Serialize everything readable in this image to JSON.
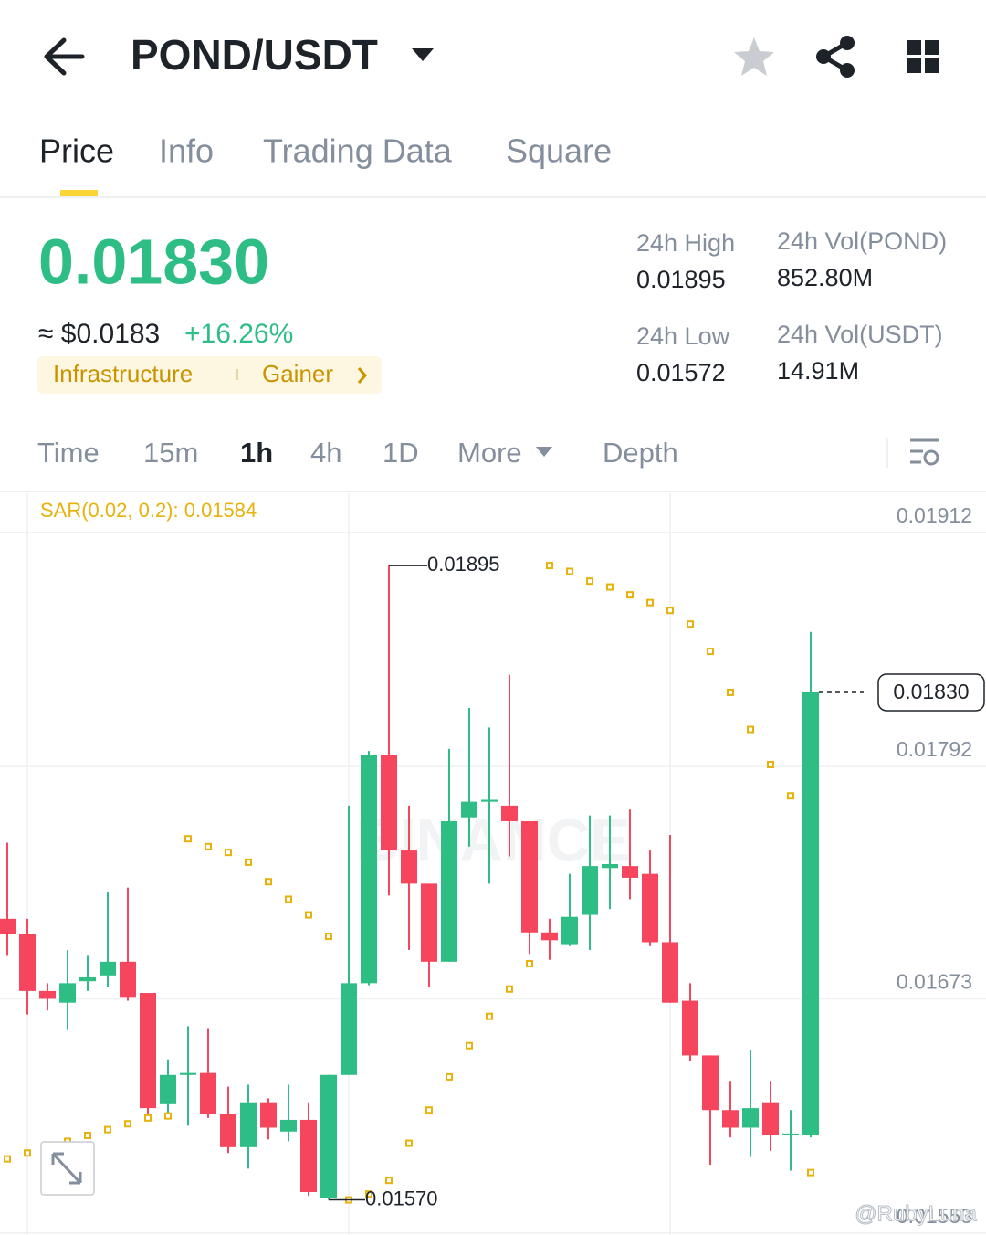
{
  "header": {
    "title": "POND/USDT"
  },
  "tabs": [
    "Price",
    "Info",
    "Trading Data",
    "Square"
  ],
  "ticker": {
    "price": "0.01830",
    "fiat": "≈ $0.0183",
    "change": "+16.26%",
    "tags": [
      "Infrastructure",
      "Gainer"
    ],
    "stats": [
      {
        "label": "24h High",
        "value": "0.01895"
      },
      {
        "label": "24h Vol(POND)",
        "value": "852.80M"
      },
      {
        "label": "24h Low",
        "value": "0.01572"
      },
      {
        "label": "24h Vol(USDT)",
        "value": "14.91M"
      }
    ]
  },
  "intervals": [
    "Time",
    "15m",
    "1h",
    "4h",
    "1D",
    "More",
    "Depth"
  ],
  "chart_data": {
    "type": "candlestick",
    "indicator_label": "SAR(0.02, 0.2): 0.01584",
    "watermark": "BINANCE",
    "up_color": "#2ebd85",
    "down_color": "#f6465d",
    "sar_color": "#e7b20c",
    "open": [
      0.01714,
      0.01706,
      0.01677,
      0.01671,
      0.01682,
      0.01685,
      0.01692,
      0.01676,
      0.01619,
      0.01634,
      0.01635,
      0.01614,
      0.01597,
      0.0162,
      0.01605,
      0.01611,
      0.01571,
      0.01634,
      0.01681,
      0.01798,
      0.01749,
      0.01732,
      0.01692,
      0.01766,
      0.01774,
      0.01772,
      0.01764,
      0.01707,
      0.01701,
      0.01716,
      0.0174,
      0.01741,
      0.01737,
      0.01702,
      0.01672,
      0.01644,
      0.01616,
      0.01607,
      0.0162,
      0.01603,
      0.01603
    ],
    "high": [
      0.01753,
      0.01714,
      0.01681,
      0.01698,
      0.01695,
      0.01728,
      0.0173,
      0.01676,
      0.01642,
      0.01659,
      0.01658,
      0.01628,
      0.01629,
      0.01622,
      0.01629,
      0.0162,
      0.01634,
      0.01772,
      0.018,
      0.01895,
      0.01772,
      0.01732,
      0.01801,
      0.01822,
      0.01812,
      0.01839,
      0.01764,
      0.01714,
      0.01737,
      0.01767,
      0.01767,
      0.0177,
      0.01749,
      0.01757,
      0.01681,
      0.01644,
      0.01631,
      0.01647,
      0.01631,
      0.01616,
      0.01861
    ],
    "low": [
      0.01695,
      0.01665,
      0.01667,
      0.01657,
      0.01677,
      0.01679,
      0.01672,
      0.01614,
      0.01614,
      0.01608,
      0.01612,
      0.01594,
      0.01586,
      0.01601,
      0.016,
      0.01572,
      0.0157,
      0.01634,
      0.0168,
      0.01726,
      0.01698,
      0.01679,
      0.01692,
      0.01751,
      0.01732,
      0.01746,
      0.01696,
      0.01693,
      0.017,
      0.01698,
      0.01719,
      0.01724,
      0.017,
      0.01671,
      0.01641,
      0.01588,
      0.01602,
      0.01592,
      0.01595,
      0.01585,
      0.01602
    ],
    "close": [
      0.01706,
      0.01677,
      0.01673,
      0.01681,
      0.01684,
      0.01692,
      0.01674,
      0.01617,
      0.01634,
      0.01635,
      0.01614,
      0.01597,
      0.0162,
      0.01607,
      0.01611,
      0.01574,
      0.01634,
      0.01681,
      0.01798,
      0.01749,
      0.01732,
      0.01692,
      0.01764,
      0.01774,
      0.01775,
      0.01764,
      0.01707,
      0.01703,
      0.01715,
      0.01741,
      0.01742,
      0.01735,
      0.01702,
      0.01671,
      0.01644,
      0.01616,
      0.01607,
      0.01617,
      0.01603,
      0.01604,
      0.0183
    ],
    "sar": [
      0.01591,
      0.01594,
      0.01597,
      0.016,
      0.01603,
      0.01606,
      0.01609,
      0.01612,
      0.01613,
      0.01755,
      0.01751,
      0.01748,
      0.01743,
      0.01733,
      0.01724,
      0.01716,
      0.01705,
      0.0157,
      0.01573,
      0.0158,
      0.01599,
      0.01616,
      0.01633,
      0.01649,
      0.01664,
      0.01678,
      0.01691,
      0.01895,
      0.01892,
      0.01887,
      0.01884,
      0.0188,
      0.01876,
      0.01872,
      0.01865,
      0.01851,
      0.0183,
      0.01811,
      0.01793,
      0.01777,
      0.01584
    ],
    "max_label": 0.01895,
    "min_label": {
      "value": 0.0157,
      "label": "0.01570"
    },
    "current_price": {
      "value": 0.0183,
      "label": "0.01830"
    },
    "ylim": [
      0.01552,
      0.01932
    ],
    "yticks": [
      0.01912,
      0.01792,
      0.01673,
      0.01553
    ],
    "grid": true
  },
  "watermark": "@RubyLuna"
}
